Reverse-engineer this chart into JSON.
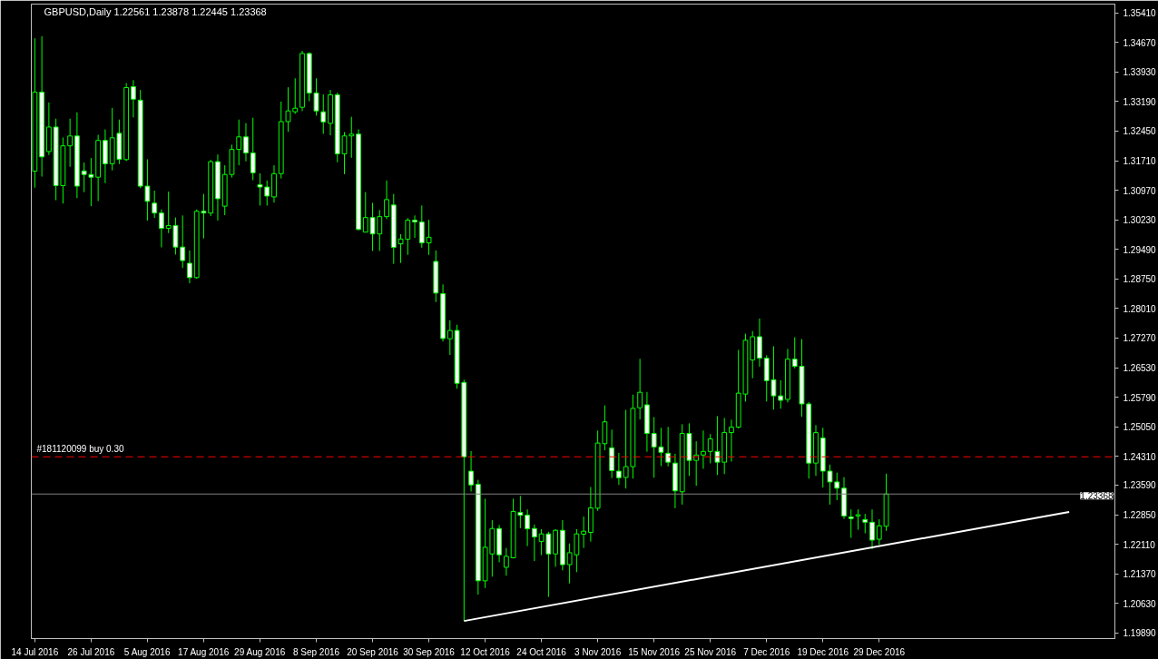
{
  "chart_data": {
    "type": "candlestick",
    "title": "GBPUSD,Daily  1.22561 1.23878 1.22445 1.23368",
    "color": "#00ff00",
    "categories": [
      "14 Jul 2016",
      null,
      null,
      null,
      null,
      null,
      null,
      null,
      "26 Jul 2016",
      null,
      null,
      null,
      null,
      null,
      null,
      null,
      "5 Aug 2016",
      null,
      null,
      null,
      null,
      null,
      null,
      null,
      "17 Aug 2016",
      null,
      null,
      null,
      null,
      null,
      null,
      null,
      "29 Aug 2016",
      null,
      null,
      null,
      null,
      null,
      null,
      null,
      "8 Sep 2016",
      null,
      null,
      null,
      null,
      null,
      null,
      null,
      "20 Sep 2016",
      null,
      null,
      null,
      null,
      null,
      null,
      null,
      "30 Sep 2016",
      null,
      null,
      null,
      null,
      null,
      null,
      null,
      "12 Oct 2016",
      null,
      null,
      null,
      null,
      null,
      null,
      null,
      "24 Oct 2016",
      null,
      null,
      null,
      null,
      null,
      null,
      null,
      "3 Nov 2016",
      null,
      null,
      null,
      null,
      null,
      null,
      null,
      "15 Nov 2016",
      null,
      null,
      null,
      null,
      null,
      null,
      null,
      "25 Nov 2016",
      null,
      null,
      null,
      null,
      null,
      null,
      null,
      "7 Dec 2016",
      null,
      null,
      null,
      null,
      null,
      null,
      null,
      "19 Dec 2016",
      null,
      null,
      null,
      null,
      null,
      null,
      null,
      "29 Dec 2016",
      null,
      null,
      null,
      null,
      null,
      null,
      null,
      null,
      null,
      null,
      null,
      null,
      null,
      null,
      null,
      null,
      null,
      null,
      null,
      null,
      null,
      null,
      null,
      null,
      null,
      null,
      null,
      null,
      null,
      null,
      null,
      null,
      null
    ],
    "ohlc": [
      [
        1.31447,
        1.34774,
        1.31036,
        1.33428
      ],
      [
        1.33428,
        1.34826,
        1.31312,
        1.31806
      ],
      [
        1.3194,
        1.33167,
        1.31851,
        1.32553
      ],
      [
        1.32553,
        1.32763,
        1.30722,
        1.31088
      ],
      [
        1.31088,
        1.32292,
        1.30639,
        1.32082
      ],
      [
        1.32082,
        1.32763,
        1.31559,
        1.32329
      ],
      [
        1.32329,
        1.3292,
        1.30774,
        1.31073
      ],
      [
        1.31454,
        1.31664,
        1.30923,
        1.31365
      ],
      [
        1.31365,
        1.31776,
        1.30572,
        1.31297
      ],
      [
        1.31297,
        1.32359,
        1.30699,
        1.32217
      ],
      [
        1.32217,
        1.32494,
        1.31148,
        1.31634
      ],
      [
        1.31634,
        1.33032,
        1.31469,
        1.32284
      ],
      [
        1.32396,
        1.3274,
        1.31626,
        1.31746
      ],
      [
        1.31738,
        1.33653,
        1.31701,
        1.3354
      ],
      [
        1.33563,
        1.33727,
        1.32793,
        1.33249
      ],
      [
        1.33226,
        1.33481,
        1.31021,
        1.31073
      ],
      [
        1.31073,
        1.31746,
        1.30213,
        1.30692
      ],
      [
        1.30647,
        1.30961,
        1.3028,
        1.304
      ],
      [
        1.304,
        1.3049,
        1.2954,
        1.30019
      ],
      [
        1.30019,
        1.30938,
        1.29899,
        1.30086
      ],
      [
        1.30086,
        1.30288,
        1.29361,
        1.29548
      ],
      [
        1.29548,
        1.3034,
        1.29024,
        1.29211
      ],
      [
        1.29144,
        1.29465,
        1.28643,
        1.28785
      ],
      [
        1.28785,
        1.3049,
        1.28755,
        1.30445
      ],
      [
        1.30445,
        1.30879,
        1.29764,
        1.304
      ],
      [
        1.304,
        1.31731,
        1.30325,
        1.31686
      ],
      [
        1.31686,
        1.31866,
        1.30213,
        1.30759
      ],
      [
        1.30572,
        1.31596,
        1.30348,
        1.31365
      ],
      [
        1.31365,
        1.32112,
        1.3129,
        1.31993
      ],
      [
        1.31993,
        1.3274,
        1.31596,
        1.32307
      ],
      [
        1.32307,
        1.32651,
        1.31694,
        1.31903
      ],
      [
        1.31903,
        1.32785,
        1.31222,
        1.31409
      ],
      [
        1.3111,
        1.31394,
        1.30587,
        1.31051
      ],
      [
        1.31051,
        1.31215,
        1.30587,
        1.30826
      ],
      [
        1.30804,
        1.31596,
        1.30662,
        1.31387
      ],
      [
        1.31387,
        1.33189,
        1.31267,
        1.32688
      ],
      [
        1.32688,
        1.33548,
        1.32434,
        1.32957
      ],
      [
        1.32935,
        1.33772,
        1.32882,
        1.33024
      ],
      [
        1.33047,
        1.3446,
        1.3295,
        1.34393
      ],
      [
        1.34393,
        1.34423,
        1.33196,
        1.33406
      ],
      [
        1.33406,
        1.33772,
        1.32838,
        1.32957
      ],
      [
        1.32935,
        1.33369,
        1.32382,
        1.32681
      ],
      [
        1.32644,
        1.33481,
        1.32345,
        1.33361
      ],
      [
        1.33361,
        1.33414,
        1.31672,
        1.31881
      ],
      [
        1.31881,
        1.32427,
        1.31373,
        1.3233
      ],
      [
        1.3233,
        1.32808,
        1.31784,
        1.32375
      ],
      [
        1.32375,
        1.32494,
        1.29967,
        1.29989
      ],
      [
        1.29922,
        1.30924,
        1.29922,
        1.30288
      ],
      [
        1.30288,
        1.30655,
        1.29451,
        1.29877
      ],
      [
        1.29877,
        1.30475,
        1.29451,
        1.30311
      ],
      [
        1.30311,
        1.31216,
        1.30251,
        1.30737
      ],
      [
        1.30602,
        1.30879,
        1.29129,
        1.29541
      ],
      [
        1.2963,
        1.2987,
        1.29152,
        1.2975
      ],
      [
        1.29743,
        1.30273,
        1.29354,
        1.30221
      ],
      [
        1.30221,
        1.30341,
        1.2978,
        1.30176
      ],
      [
        1.30176,
        1.30588,
        1.29533,
        1.29653
      ],
      [
        1.29653,
        1.30229,
        1.29354,
        1.29795
      ],
      [
        1.29189,
        1.29466,
        1.28172,
        1.28397
      ],
      [
        1.28382,
        1.28614,
        1.27185,
        1.2726
      ],
      [
        1.27253,
        1.27716,
        1.26849,
        1.27462
      ],
      [
        1.27462,
        1.27604,
        1.26004,
        1.26139
      ],
      [
        1.26161,
        1.26228,
        1.20194,
        1.24299
      ],
      [
        1.2394,
        1.24441,
        1.23432,
        1.23596
      ],
      [
        1.23611,
        1.23724,
        1.20852,
        1.21196
      ],
      [
        1.21196,
        1.23252,
        1.21017,
        1.22034
      ],
      [
        1.21869,
        1.22714,
        1.21301,
        1.22505
      ],
      [
        1.22505,
        1.22595,
        1.2166,
        1.21847
      ],
      [
        1.21533,
        1.22019,
        1.21323,
        1.21809
      ],
      [
        1.21772,
        1.23252,
        1.21757,
        1.22931
      ],
      [
        1.22909,
        1.2332,
        1.22512,
        1.22834
      ],
      [
        1.22841,
        1.22983,
        1.22064,
        1.22497
      ],
      [
        1.22505,
        1.22602,
        1.2169,
        1.22295
      ],
      [
        1.22183,
        1.2249,
        1.21839,
        1.2237
      ],
      [
        1.2237,
        1.22423,
        1.20793,
        1.21869
      ],
      [
        1.21869,
        1.2249,
        1.21548,
        1.2246
      ],
      [
        1.2246,
        1.22714,
        1.21458,
        1.216
      ],
      [
        1.216,
        1.22131,
        1.21129,
        1.21899
      ],
      [
        1.21847,
        1.2249,
        1.21413,
        1.2237
      ],
      [
        1.22363,
        1.22804,
        1.22019,
        1.22438
      ],
      [
        1.22408,
        1.23544,
        1.22176,
        1.23021
      ],
      [
        1.23013,
        1.24957,
        1.22946,
        1.24643
      ],
      [
        1.24628,
        1.25585,
        1.24464,
        1.25174
      ],
      [
        1.24524,
        1.2498,
        1.23768,
        1.23955
      ],
      [
        1.2394,
        1.24396,
        1.23596,
        1.23776
      ],
      [
        1.23783,
        1.25473,
        1.23507,
        1.24053
      ],
      [
        1.24053,
        1.25855,
        1.23754,
        1.25511
      ],
      [
        1.25526,
        1.26752,
        1.25234,
        1.25914
      ],
      [
        1.256,
        1.25922,
        1.24427,
        1.24883
      ],
      [
        1.24883,
        1.25294,
        1.23776,
        1.24546
      ],
      [
        1.24546,
        1.25025,
        1.24068,
        1.24412
      ],
      [
        1.24389,
        1.25047,
        1.2406,
        1.24165
      ],
      [
        1.24142,
        1.24374,
        1.23013,
        1.23447
      ],
      [
        1.23425,
        1.25114,
        1.23103,
        1.24883
      ],
      [
        1.24883,
        1.25137,
        1.23821,
        1.2421
      ],
      [
        1.2421,
        1.24688,
        1.23574,
        1.24344
      ],
      [
        1.24344,
        1.24957,
        1.24,
        1.24434
      ],
      [
        1.24434,
        1.24868,
        1.24135,
        1.24748
      ],
      [
        1.24434,
        1.25316,
        1.23843,
        1.24165
      ],
      [
        1.24165,
        1.25271,
        1.23866,
        1.24905
      ],
      [
        1.24905,
        1.25227,
        1.2418,
        1.2504
      ],
      [
        1.2504,
        1.26976,
        1.2501,
        1.25892
      ],
      [
        1.2587,
        1.2738,
        1.25683,
        1.27215
      ],
      [
        1.26722,
        1.27447,
        1.26266,
        1.27305
      ],
      [
        1.27305,
        1.27761,
        1.26557,
        1.26767
      ],
      [
        1.26767,
        1.26842,
        1.25683,
        1.26206
      ],
      [
        1.26228,
        1.27066,
        1.25481,
        1.25825
      ],
      [
        1.25825,
        1.26214,
        1.25503,
        1.25713
      ],
      [
        1.25735,
        1.26999,
        1.2566,
        1.26744
      ],
      [
        1.26744,
        1.2729,
        1.26513,
        1.26565
      ],
      [
        1.26565,
        1.27245,
        1.25301,
        1.25623
      ],
      [
        1.25623,
        1.25668,
        1.23754,
        1.24142
      ],
      [
        1.24142,
        1.25092,
        1.23821,
        1.24905
      ],
      [
        1.2477,
        1.25025,
        1.23529,
        1.23941
      ],
      [
        1.23941,
        1.24105,
        1.23103,
        1.23671
      ],
      [
        1.23671,
        1.23903,
        1.23215,
        1.23514
      ],
      [
        1.23514,
        1.23791,
        1.22744,
        1.22819
      ],
      [
        1.22797,
        1.22983,
        1.22273,
        1.22752
      ],
      [
        1.22819,
        1.22983,
        1.22475,
        1.22849
      ],
      [
        1.22729,
        1.22871,
        1.22385,
        1.22662
      ],
      [
        1.22662,
        1.22983,
        1.21989,
        1.22213
      ],
      [
        1.22236,
        1.22737,
        1.22101,
        1.22572
      ],
      [
        1.22561,
        1.23878,
        1.22445,
        1.23368
      ],
      null,
      null,
      null,
      null,
      null,
      null,
      null,
      null,
      null,
      null,
      null,
      null,
      null,
      null,
      null,
      null,
      null,
      null,
      null,
      null,
      null,
      null,
      null,
      null,
      null,
      null,
      null,
      null,
      null,
      null,
      null,
      null
    ],
    "ylim": [
      1.1975,
      1.3563
    ],
    "yticks": [
      {
        "value": 1.3541,
        "label": "1.35410"
      },
      {
        "value": 1.3467,
        "label": "1.34670"
      },
      {
        "value": 1.3393,
        "label": "1.33930"
      },
      {
        "value": 1.3319,
        "label": "1.33190"
      },
      {
        "value": 1.3245,
        "label": "1.32450"
      },
      {
        "value": 1.3171,
        "label": "1.31710"
      },
      {
        "value": 1.3097,
        "label": "1.30970"
      },
      {
        "value": 1.3023,
        "label": "1.30230"
      },
      {
        "value": 1.2949,
        "label": "1.29490"
      },
      {
        "value": 1.2875,
        "label": "1.28750"
      },
      {
        "value": 1.2801,
        "label": "1.28010"
      },
      {
        "value": 1.2727,
        "label": "1.27270"
      },
      {
        "value": 1.2653,
        "label": "1.26530"
      },
      {
        "value": 1.2579,
        "label": "1.25790"
      },
      {
        "value": 1.2505,
        "label": "1.25050"
      },
      {
        "value": 1.2431,
        "label": "1.24310"
      },
      {
        "value": 1.2359,
        "label": "1.23590"
      },
      {
        "value": 1.2285,
        "label": "1.22850"
      },
      {
        "value": 1.2211,
        "label": "1.22110"
      },
      {
        "value": 1.2137,
        "label": "1.21370"
      },
      {
        "value": 1.2063,
        "label": "1.20630"
      },
      {
        "value": 1.1989,
        "label": "1.19890"
      }
    ],
    "ref_lines": [
      {
        "axis": "y",
        "value": 1.243,
        "label": "#181120099 buy 0.30",
        "color": "#ff0000",
        "line_style": "dashed"
      },
      {
        "axis": "y",
        "value": 1.23368,
        "label": "1.23368",
        "color": "#808080",
        "line_style": "solid"
      }
    ],
    "series": [
      {
        "type": "line",
        "color": "#ffffff",
        "values": [
          null,
          null,
          null,
          null,
          null,
          null,
          null,
          null,
          null,
          null,
          null,
          null,
          null,
          null,
          null,
          null,
          null,
          null,
          null,
          null,
          null,
          null,
          null,
          null,
          null,
          null,
          null,
          null,
          null,
          null,
          null,
          null,
          null,
          null,
          null,
          null,
          null,
          null,
          null,
          null,
          null,
          null,
          null,
          null,
          null,
          null,
          null,
          null,
          null,
          null,
          null,
          null,
          null,
          null,
          null,
          null,
          null,
          null,
          null,
          null,
          null,
          1.2019,
          null,
          null,
          null,
          null,
          null,
          null,
          null,
          null,
          null,
          null,
          null,
          null,
          null,
          null,
          null,
          null,
          null,
          null,
          null,
          null,
          null,
          null,
          null,
          null,
          null,
          null,
          null,
          null,
          null,
          null,
          null,
          null,
          null,
          null,
          null,
          null,
          null,
          null,
          null,
          null,
          null,
          null,
          null,
          null,
          null,
          null,
          null,
          null,
          null,
          null,
          null,
          null,
          null,
          null,
          null,
          null,
          null,
          null,
          null,
          null,
          null,
          null,
          null,
          null,
          null,
          null,
          null,
          null,
          null,
          null,
          null,
          null,
          null,
          null,
          null,
          null,
          null,
          null,
          null,
          null,
          null,
          null,
          null,
          null,
          null,
          1.2292,
          null,
          null,
          null,
          null,
          null,
          null
        ]
      }
    ]
  }
}
